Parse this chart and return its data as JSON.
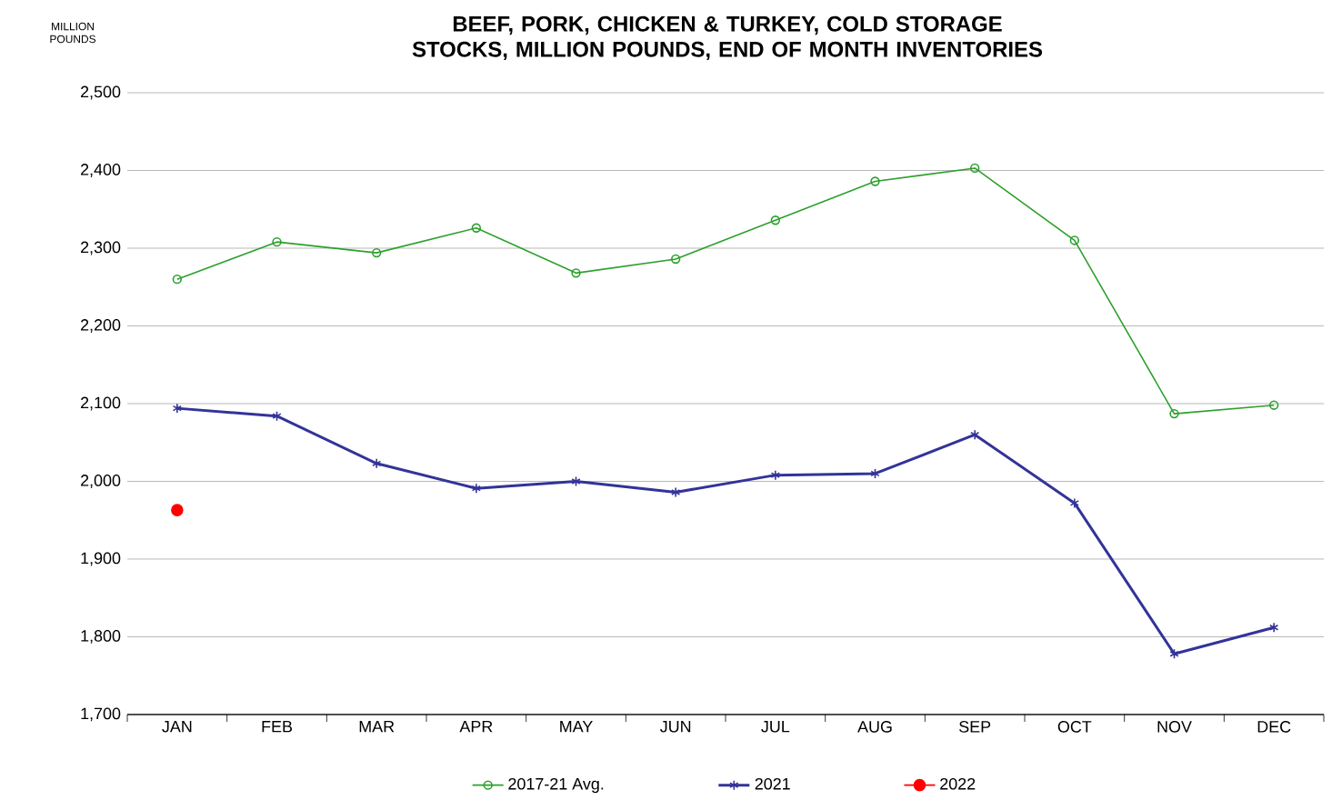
{
  "chart_data": {
    "type": "line",
    "title": "BEEF, PORK, CHICKEN & TURKEY, COLD STORAGE STOCKS, MILLION POUNDS, END OF MONTH INVENTORIES",
    "ylabel": "MILLION POUNDS",
    "categories": [
      "JAN",
      "FEB",
      "MAR",
      "APR",
      "MAY",
      "JUN",
      "JUL",
      "AUG",
      "SEP",
      "OCT",
      "NOV",
      "DEC"
    ],
    "series": [
      {
        "name": "2017-21 Avg.",
        "color": "#2ca02c",
        "marker": "circle",
        "values": [
          2260,
          2308,
          2294,
          2326,
          2268,
          2286,
          2336,
          2386,
          2403,
          2310,
          2087,
          2098
        ]
      },
      {
        "name": "2021",
        "color": "#333399",
        "marker": "cross",
        "values": [
          2094,
          2084,
          2023,
          1991,
          2000,
          1986,
          2008,
          2010,
          2060,
          1972,
          1778,
          1812
        ]
      },
      {
        "name": "2022",
        "color": "#ff0000",
        "marker": "circle_filled",
        "values": [
          1963,
          null,
          null,
          null,
          null,
          null,
          null,
          null,
          null,
          null,
          null,
          null
        ]
      }
    ],
    "ylim": [
      1700,
      2500
    ],
    "yticks": [
      {
        "value": 1700,
        "label": "1,700"
      },
      {
        "value": 1800,
        "label": "1,800"
      },
      {
        "value": 1900,
        "label": "1,900"
      },
      {
        "value": 2000,
        "label": "2,000"
      },
      {
        "value": 2100,
        "label": "2,100"
      },
      {
        "value": 2200,
        "label": "2,200"
      },
      {
        "value": 2300,
        "label": "2,300"
      },
      {
        "value": 2400,
        "label": "2,400"
      },
      {
        "value": 2500,
        "label": "2,500"
      }
    ],
    "grid": "y",
    "legend": "bottom"
  }
}
